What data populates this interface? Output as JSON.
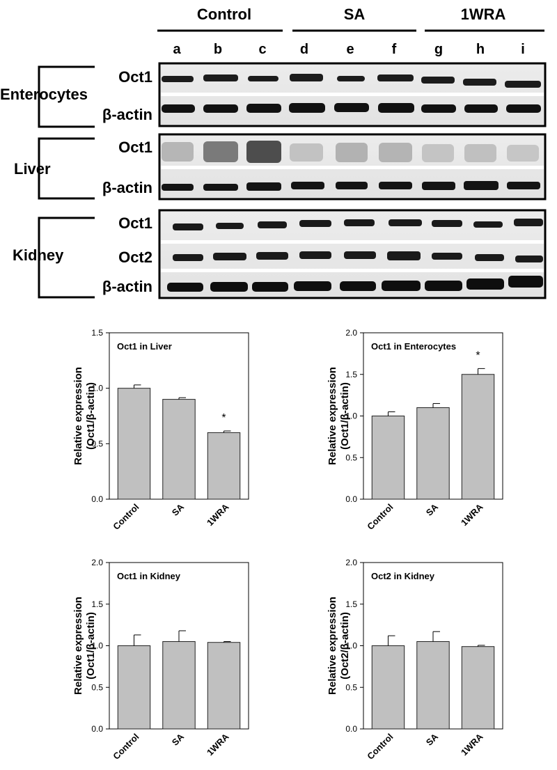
{
  "blot": {
    "groups": [
      {
        "label": "Control",
        "lanes": [
          "a",
          "b",
          "c"
        ]
      },
      {
        "label": "SA",
        "lanes": [
          "d",
          "e",
          "f"
        ]
      },
      {
        "label": "1WRA",
        "lanes": [
          "g",
          "h",
          "i"
        ]
      }
    ],
    "tissues": [
      {
        "label": "Enterocytes",
        "bands": [
          "Oct1",
          "β-actin"
        ]
      },
      {
        "label": "Liver",
        "bands": [
          "Oct1",
          "β-actin"
        ]
      },
      {
        "label": "Kidney",
        "bands": [
          "Oct1",
          "Oct2",
          "β-actin"
        ]
      }
    ]
  },
  "chart_data": [
    {
      "type": "bar",
      "title": "Oct1 in Liver",
      "categories": [
        "Control",
        "SA",
        "1WRA"
      ],
      "values": [
        1.0,
        0.9,
        0.6
      ],
      "errors": [
        0.03,
        0.015,
        0.015
      ],
      "significance": [
        "",
        "",
        "*"
      ],
      "ylabel": [
        "Relative expression",
        "(Oct1/β-actin)"
      ],
      "ylim": [
        0,
        1.5
      ],
      "yticks": [
        "0.0",
        "0.5",
        "1.0",
        "1.5"
      ],
      "bar_color": "#c0c0c0"
    },
    {
      "type": "bar",
      "title": "Oct1 in Enterocytes",
      "categories": [
        "Control",
        "SA",
        "1WRA"
      ],
      "values": [
        1.0,
        1.1,
        1.5
      ],
      "errors": [
        0.05,
        0.05,
        0.07
      ],
      "significance": [
        "",
        "",
        "*"
      ],
      "ylabel": [
        "Relative expression",
        "(Oct1/β-actin)"
      ],
      "ylim": [
        0,
        2.0
      ],
      "yticks": [
        "0.0",
        "0.5",
        "1.0",
        "1.5",
        "2.0"
      ],
      "bar_color": "#c0c0c0"
    },
    {
      "type": "bar",
      "title": "Oct1 in Kidney",
      "categories": [
        "Control",
        "SA",
        "1WRA"
      ],
      "values": [
        1.0,
        1.05,
        1.04
      ],
      "errors": [
        0.13,
        0.13,
        0.01
      ],
      "significance": [
        "",
        "",
        ""
      ],
      "ylabel": [
        "Relative expression",
        "(Oct1/β-actin)"
      ],
      "ylim": [
        0,
        2.0
      ],
      "yticks": [
        "0.0",
        "0.5",
        "1.0",
        "1.5",
        "2.0"
      ],
      "bar_color": "#c0c0c0"
    },
    {
      "type": "bar",
      "title": "Oct2 in Kidney",
      "categories": [
        "Control",
        "SA",
        "1WRA"
      ],
      "values": [
        1.0,
        1.05,
        0.99
      ],
      "errors": [
        0.12,
        0.12,
        0.015
      ],
      "significance": [
        "",
        "",
        ""
      ],
      "ylabel": [
        "Relative expression",
        "(Oct2/β-actin)"
      ],
      "ylim": [
        0,
        2.0
      ],
      "yticks": [
        "0.0",
        "0.5",
        "1.0",
        "1.5",
        "2.0"
      ],
      "bar_color": "#c0c0c0"
    }
  ]
}
